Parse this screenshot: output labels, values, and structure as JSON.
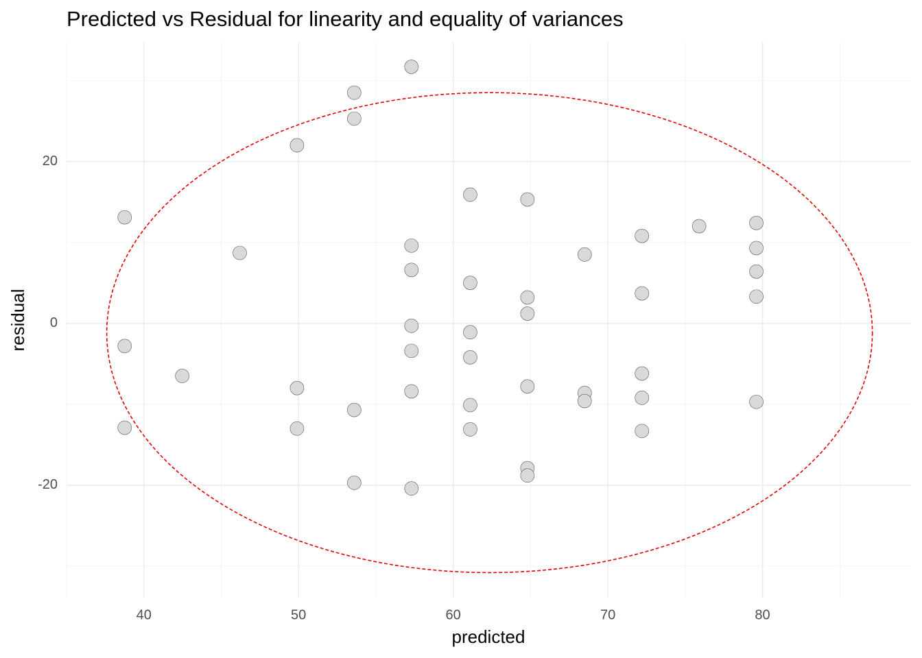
{
  "chart_data": {
    "type": "scatter",
    "title": "Predicted vs Residual for linearity and equality of variances",
    "x_label": "predicted",
    "y_label": "residual",
    "x": [
      38.76,
      38.76,
      38.76,
      42.48,
      46.2,
      49.9,
      49.9,
      49.9,
      53.6,
      53.6,
      53.6,
      53.6,
      57.3,
      57.3,
      57.3,
      57.3,
      57.3,
      57.3,
      57.3,
      61.1,
      61.1,
      61.1,
      61.1,
      61.1,
      61.1,
      64.8,
      64.8,
      64.8,
      64.8,
      64.8,
      64.8,
      68.5,
      68.5,
      68.5,
      72.2,
      72.2,
      72.2,
      72.2,
      72.2,
      75.9,
      79.6,
      79.6,
      79.6,
      79.6,
      79.6
    ],
    "values": [
      13.1,
      -2.8,
      -12.9,
      -6.5,
      8.7,
      22.0,
      -8.0,
      -13.0,
      28.5,
      25.3,
      -10.7,
      -19.7,
      31.7,
      9.6,
      6.6,
      -0.3,
      -3.4,
      -8.4,
      -20.4,
      15.9,
      5.0,
      -1.1,
      -4.2,
      -10.1,
      -13.1,
      15.3,
      3.2,
      1.2,
      -7.8,
      -17.9,
      -18.8,
      8.5,
      -8.6,
      -9.6,
      10.8,
      3.7,
      -6.2,
      -9.2,
      -13.3,
      12.0,
      12.4,
      9.3,
      6.4,
      3.3,
      -9.7
    ],
    "color": "#d9d9d9",
    "xlim": [
      35.0,
      89.6
    ],
    "ylim": [
      -33.9,
      34.7
    ],
    "xticks": [
      40,
      50,
      60,
      70,
      80
    ],
    "yticks": [
      -20,
      0,
      20
    ],
    "xminor": [
      35,
      45,
      55,
      65,
      75,
      85
    ],
    "yminor": [
      -30,
      -10,
      10,
      30
    ],
    "grid": true,
    "ellipse": {
      "cx": 62.35,
      "cy": -1.15,
      "rx": 24.75,
      "ry": 29.65,
      "color": "#e00000"
    }
  }
}
